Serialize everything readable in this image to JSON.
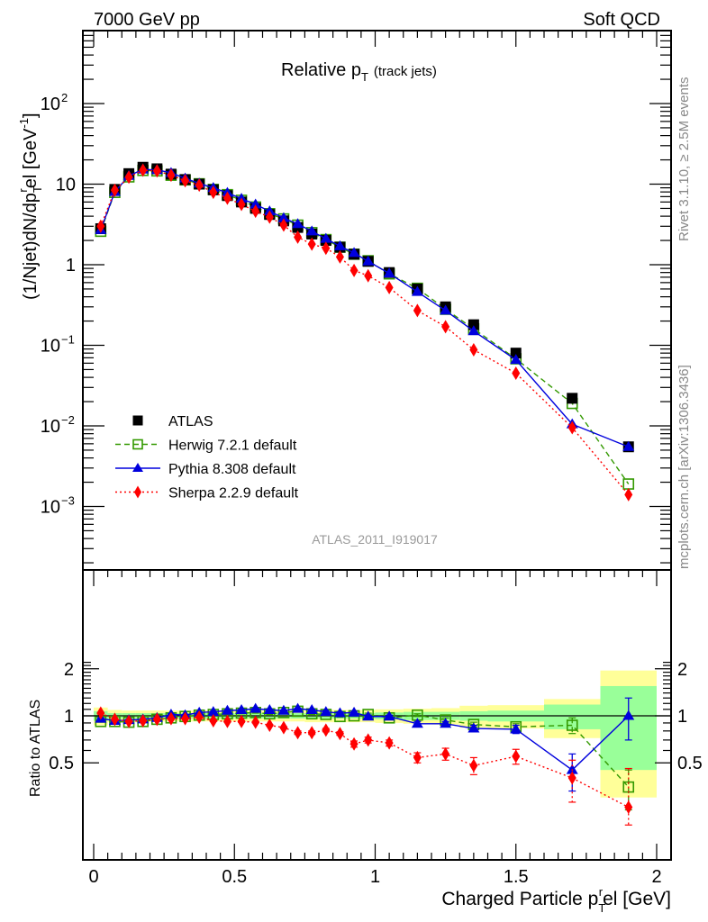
{
  "chart_data": {
    "type": "line",
    "header_left": "7000 GeV pp",
    "header_right": "Soft QCD",
    "title": "Relative p",
    "title_sub": "T",
    "title_suffix": "(track jets)",
    "ylabel": "(1/Njet)dN/dp",
    "ylabel_sub": "T",
    "ylabel_sup": "r",
    "ylabel_rest": "el [GeV",
    "ylabel_sup2": "-1",
    "ylabel_close": "]",
    "ratio_ylabel": "Ratio to ATLAS",
    "xlabel": "Charged Particle p",
    "xlabel_sub": "T",
    "xlabel_sup": "r",
    "xlabel_rest": "el [GeV]",
    "side_text_top": "Rivet 3.1.10, ≥ 2.5M events",
    "side_text_bottom": "mcplots.cern.ch [arXiv:1306.3436]",
    "analysis_label": "ATLAS_2011_I919017",
    "xlim": [
      -0.04,
      2.05
    ],
    "ylim": [
      0.0002,
      900
    ],
    "ylog": true,
    "ratio_ylim": [
      0.42,
      2.3
    ],
    "x_ticks": [
      "0",
      "0.5",
      "1",
      "1.5",
      "2"
    ],
    "x_tick_values": [
      0,
      0.5,
      1,
      1.5,
      2
    ],
    "y_ticks": [
      {
        "value": 100,
        "base": "10",
        "exp": "2"
      },
      {
        "value": 10,
        "base": "10",
        "exp": ""
      },
      {
        "value": 1,
        "base": "1",
        "exp": ""
      },
      {
        "value": 0.1,
        "base": "10",
        "exp": "−1"
      },
      {
        "value": 0.01,
        "base": "10",
        "exp": "−2"
      },
      {
        "value": 0.001,
        "base": "10",
        "exp": "−3"
      }
    ],
    "ratio_y_ticks": [
      {
        "value": 2,
        "label": "2"
      },
      {
        "value": 1,
        "label": "1"
      },
      {
        "value": 0.5,
        "label": "0.5"
      }
    ],
    "bins": [
      [
        0,
        0.05
      ],
      [
        0.05,
        0.1
      ],
      [
        0.1,
        0.15
      ],
      [
        0.15,
        0.2
      ],
      [
        0.2,
        0.25
      ],
      [
        0.25,
        0.3
      ],
      [
        0.3,
        0.35
      ],
      [
        0.35,
        0.4
      ],
      [
        0.4,
        0.45
      ],
      [
        0.45,
        0.5
      ],
      [
        0.5,
        0.55
      ],
      [
        0.55,
        0.6
      ],
      [
        0.6,
        0.65
      ],
      [
        0.65,
        0.7
      ],
      [
        0.7,
        0.75
      ],
      [
        0.75,
        0.8
      ],
      [
        0.8,
        0.85
      ],
      [
        0.85,
        0.9
      ],
      [
        0.9,
        0.95
      ],
      [
        0.95,
        1.0
      ],
      [
        1.0,
        1.1
      ],
      [
        1.1,
        1.2
      ],
      [
        1.2,
        1.3
      ],
      [
        1.3,
        1.4
      ],
      [
        1.4,
        1.6
      ],
      [
        1.6,
        1.8
      ],
      [
        1.8,
        2.0
      ]
    ],
    "x": [
      0.025,
      0.075,
      0.125,
      0.175,
      0.225,
      0.275,
      0.325,
      0.375,
      0.425,
      0.475,
      0.525,
      0.575,
      0.625,
      0.675,
      0.725,
      0.775,
      0.825,
      0.875,
      0.925,
      0.975,
      1.05,
      1.15,
      1.25,
      1.35,
      1.5,
      1.7,
      1.9
    ],
    "band_inner": [
      0.07,
      0.04,
      0.04,
      0.04,
      0.04,
      0.04,
      0.04,
      0.04,
      0.04,
      0.04,
      0.04,
      0.04,
      0.04,
      0.04,
      0.04,
      0.04,
      0.04,
      0.04,
      0.04,
      0.04,
      0.05,
      0.06,
      0.06,
      0.07,
      0.08,
      0.18,
      0.55
    ],
    "band_outer": [
      0.13,
      0.09,
      0.08,
      0.08,
      0.08,
      0.08,
      0.08,
      0.08,
      0.08,
      0.08,
      0.08,
      0.08,
      0.08,
      0.08,
      0.08,
      0.09,
      0.09,
      0.09,
      0.09,
      0.09,
      0.1,
      0.11,
      0.12,
      0.16,
      0.17,
      0.28,
      0.95
    ],
    "series": [
      {
        "name": "ATLAS",
        "color": "#000000",
        "marker": "square-filled",
        "line": "none",
        "values": [
          2.8,
          8.6,
          13.5,
          16.2,
          15.5,
          13.3,
          11.4,
          10.0,
          8.5,
          7.2,
          6.0,
          5.0,
          4.2,
          3.5,
          2.9,
          2.4,
          2.0,
          1.65,
          1.35,
          1.1,
          0.8,
          0.5,
          0.3,
          0.18,
          0.08,
          0.022,
          0.0055
        ],
        "errors": [
          0.1,
          0.2,
          0.3,
          0.3,
          0.3,
          0.3,
          0.2,
          0.2,
          0.2,
          0.1,
          0.1,
          0.1,
          0.1,
          0.1,
          0.1,
          0.05,
          0.05,
          0.04,
          0.03,
          0.03,
          0.02,
          0.01,
          0.008,
          0.005,
          0.003,
          0.002,
          0.001
        ]
      },
      {
        "name": "Herwig 7.2.1 default",
        "color": "#339900",
        "marker": "square-open",
        "line": "dashed",
        "values": [
          2.6,
          7.9,
          12.3,
          14.8,
          14.6,
          12.9,
          11.3,
          10.1,
          8.6,
          7.4,
          6.3,
          5.2,
          4.3,
          3.7,
          3.1,
          2.5,
          2.05,
          1.65,
          1.35,
          1.12,
          0.77,
          0.51,
          0.28,
          0.16,
          0.068,
          0.019,
          0.0019
        ],
        "ratio": [
          0.92,
          0.92,
          0.91,
          0.92,
          0.95,
          0.97,
          0.99,
          1.01,
          1.02,
          1.03,
          1.04,
          1.05,
          1.03,
          1.05,
          1.07,
          1.03,
          1.02,
          0.99,
          1.0,
          1.02,
          0.97,
          1.01,
          0.94,
          0.88,
          0.85,
          0.87,
          0.35
        ],
        "ratio_errors": [
          0.01,
          0.01,
          0.01,
          0.01,
          0.01,
          0.01,
          0.01,
          0.01,
          0.01,
          0.01,
          0.01,
          0.01,
          0.01,
          0.01,
          0.01,
          0.01,
          0.01,
          0.01,
          0.01,
          0.02,
          0.02,
          0.02,
          0.03,
          0.03,
          0.04,
          0.1,
          0.1
        ]
      },
      {
        "name": "Pythia 8.308 default",
        "color": "#0000dd",
        "marker": "triangle-filled",
        "line": "solid",
        "values": [
          2.7,
          8.0,
          12.7,
          15.2,
          15.0,
          13.8,
          11.8,
          10.2,
          9.0,
          7.8,
          6.6,
          5.6,
          4.6,
          3.8,
          3.2,
          2.6,
          2.1,
          1.7,
          1.4,
          1.1,
          0.78,
          0.46,
          0.27,
          0.15,
          0.066,
          0.0105,
          0.0055
        ],
        "ratio": [
          0.96,
          0.93,
          0.94,
          0.95,
          0.97,
          1.02,
          1.01,
          1.05,
          1.06,
          1.08,
          1.09,
          1.11,
          1.09,
          1.08,
          1.11,
          1.09,
          1.06,
          1.04,
          1.05,
          0.99,
          0.99,
          0.89,
          0.89,
          0.83,
          0.82,
          0.45,
          1.0
        ],
        "ratio_errors": [
          0.01,
          0.01,
          0.01,
          0.01,
          0.01,
          0.01,
          0.01,
          0.01,
          0.01,
          0.01,
          0.01,
          0.01,
          0.01,
          0.01,
          0.01,
          0.01,
          0.02,
          0.02,
          0.02,
          0.02,
          0.02,
          0.03,
          0.03,
          0.04,
          0.05,
          0.12,
          0.3
        ]
      },
      {
        "name": "Sherpa 2.2.9 default",
        "color": "#ff0000",
        "marker": "diamond-filled",
        "line": "dotted",
        "values": [
          3.0,
          8.4,
          12.2,
          14.9,
          14.6,
          12.9,
          11.0,
          9.7,
          7.9,
          6.7,
          5.6,
          4.6,
          3.9,
          3.1,
          2.2,
          1.8,
          1.6,
          1.25,
          0.85,
          0.73,
          0.52,
          0.27,
          0.17,
          0.088,
          0.045,
          0.0095,
          0.0014
        ],
        "ratio": [
          1.04,
          0.95,
          0.92,
          0.93,
          0.95,
          0.96,
          0.96,
          0.98,
          0.93,
          0.92,
          0.92,
          0.91,
          0.87,
          0.84,
          0.78,
          0.78,
          0.81,
          0.77,
          0.66,
          0.7,
          0.67,
          0.54,
          0.57,
          0.48,
          0.55,
          0.4,
          0.26
        ],
        "ratio_errors": [
          0.01,
          0.01,
          0.01,
          0.01,
          0.01,
          0.01,
          0.01,
          0.01,
          0.01,
          0.01,
          0.01,
          0.01,
          0.01,
          0.01,
          0.02,
          0.02,
          0.02,
          0.02,
          0.03,
          0.03,
          0.03,
          0.04,
          0.05,
          0.06,
          0.06,
          0.12,
          0.2
        ]
      }
    ]
  }
}
